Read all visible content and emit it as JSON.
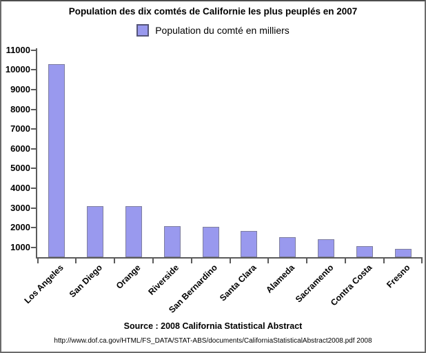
{
  "colors": {
    "bar_fill": "#9999ee",
    "bar_border": "#7e7e9e",
    "legend_swatch_border": "#555578",
    "axis": "#5a5a5a",
    "frame_border": "#6b6b6b",
    "text": "#000000"
  },
  "chart_data": {
    "type": "bar",
    "title": "Population des dix comtés de Californie les plus peuplés en 2007",
    "series_name": "Population du comté en milliers",
    "legend_position": "top",
    "categories": [
      "Los Angeles",
      "San Diego",
      "Orange",
      "Riverside",
      "San Bernardino",
      "Santa Clara",
      "Alameda",
      "Sacramento",
      "Contra Costa",
      "Fresno"
    ],
    "values": [
      10300,
      3100,
      3080,
      2080,
      2040,
      1820,
      1520,
      1420,
      1050,
      930
    ],
    "xlabel": "",
    "ylabel": "",
    "yticks": [
      1000,
      2000,
      3000,
      4000,
      5000,
      6000,
      7000,
      8000,
      9000,
      10000,
      11000
    ],
    "ylim": [
      500,
      11100
    ],
    "grid": false,
    "caption": "Source : 2008 California Statistical Abstract",
    "footnote": "http://www.dof.ca.gov/HTML/FS_DATA/STAT-ABS/documents/CaliforniaStatisticalAbstract2008.pdf 2008"
  }
}
